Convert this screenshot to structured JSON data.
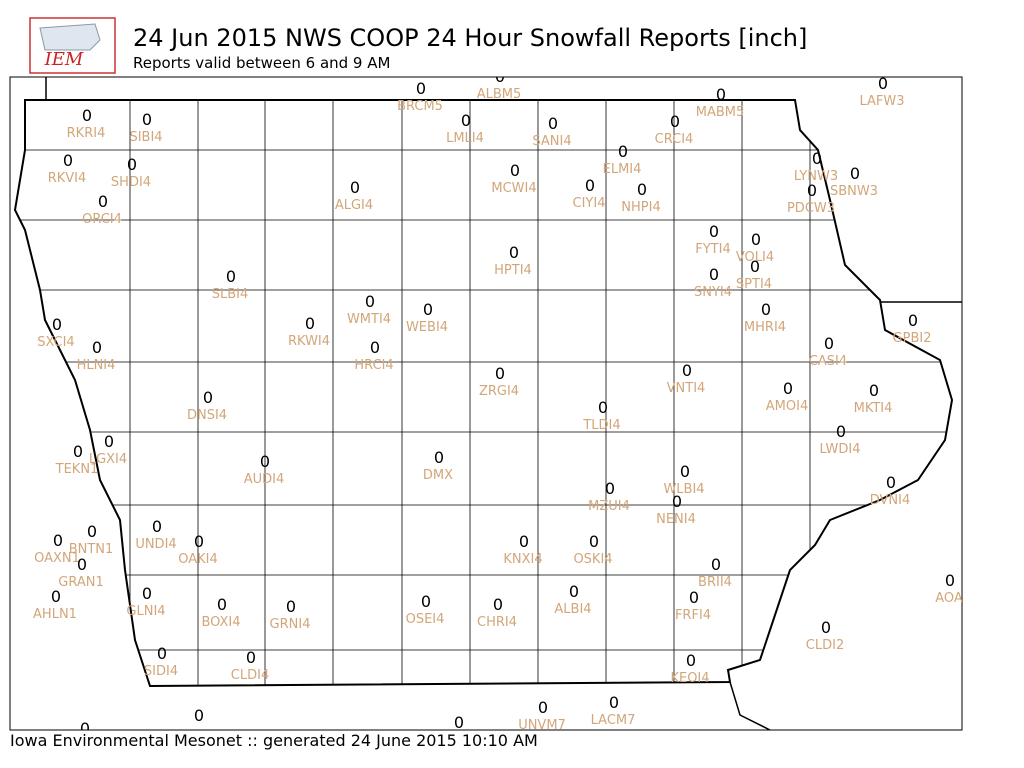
{
  "header": {
    "logo": "IEM",
    "title": "24 Jun 2015 NWS COOP 24 Hour Snowfall Reports [inch]",
    "subtitle": "Reports valid between 6 and 9 AM"
  },
  "footer": "Iowa Environmental Mesonet :: generated 24 June 2015 10:10 AM",
  "stations": [
    {
      "label": "RKRI4",
      "value": 0
    },
    {
      "label": "SIBI4",
      "value": 0
    },
    {
      "label": "RKVI4",
      "value": 0
    },
    {
      "label": "SHDI4",
      "value": 0
    },
    {
      "label": "ORCI4",
      "value": 0
    },
    {
      "label": "BRCM5",
      "value": 0
    },
    {
      "label": "ALBM5",
      "value": 0
    },
    {
      "label": "LMLI4",
      "value": 0
    },
    {
      "label": "SANI4",
      "value": 0
    },
    {
      "label": "CRCI4",
      "value": 0
    },
    {
      "label": "MABM5",
      "value": 0
    },
    {
      "label": "LAFW3",
      "value": 0
    },
    {
      "label": "ELMI4",
      "value": 0
    },
    {
      "label": "MCWI4",
      "value": 0
    },
    {
      "label": "CIYI4",
      "value": 0
    },
    {
      "label": "NHPI4",
      "value": 0
    },
    {
      "label": "ALGI4",
      "value": 0
    },
    {
      "label": "LYNW3",
      "value": 0
    },
    {
      "label": "SBNW3",
      "value": 0
    },
    {
      "label": "PDCW3",
      "value": 0
    },
    {
      "label": "FYTI4",
      "value": 0
    },
    {
      "label": "VOLI4",
      "value": 0
    },
    {
      "label": "HPTI4",
      "value": 0
    },
    {
      "label": "SLBI4",
      "value": 0
    },
    {
      "label": "SNYI4",
      "value": 0
    },
    {
      "label": "SPTI4",
      "value": 0
    },
    {
      "label": "WMTI4",
      "value": 0
    },
    {
      "label": "WEBI4",
      "value": 0
    },
    {
      "label": "RKWI4",
      "value": 0
    },
    {
      "label": "MHRI4",
      "value": 0
    },
    {
      "label": "GPBI2",
      "value": 0
    },
    {
      "label": "SXCI4",
      "value": 0
    },
    {
      "label": "HLNI4",
      "value": 0
    },
    {
      "label": "HRCI4",
      "value": 0
    },
    {
      "label": "CASI4",
      "value": 0
    },
    {
      "label": "VNTI4",
      "value": 0
    },
    {
      "label": "ZRGI4",
      "value": 0
    },
    {
      "label": "AMOI4",
      "value": 0
    },
    {
      "label": "MKTI4",
      "value": 0
    },
    {
      "label": "DNSI4",
      "value": 0
    },
    {
      "label": "TLDI4",
      "value": 0
    },
    {
      "label": "LWDI4",
      "value": 0
    },
    {
      "label": "LGXI4",
      "value": 0
    },
    {
      "label": "TEKN1",
      "value": 0
    },
    {
      "label": "DMX",
      "value": 0
    },
    {
      "label": "AUDI4",
      "value": 0
    },
    {
      "label": "WLBI4",
      "value": 0
    },
    {
      "label": "DVNI4",
      "value": 0
    },
    {
      "label": "MZUI4",
      "value": 0
    },
    {
      "label": "NENI4",
      "value": 0
    },
    {
      "label": "UNDI4",
      "value": 0
    },
    {
      "label": "BNTN1",
      "value": 0
    },
    {
      "label": "OAKI4",
      "value": 0
    },
    {
      "label": "KNXI4",
      "value": 0
    },
    {
      "label": "OSKI4",
      "value": 0
    },
    {
      "label": "OAXN1",
      "value": 0
    },
    {
      "label": "GRAN1",
      "value": 0
    },
    {
      "label": "BRII4",
      "value": 0
    },
    {
      "label": "AOA",
      "value": 0
    },
    {
      "label": "AHLN1",
      "value": 0
    },
    {
      "label": "GLNI4",
      "value": 0
    },
    {
      "label": "ALBI4",
      "value": 0
    },
    {
      "label": "FRFI4",
      "value": 0
    },
    {
      "label": "BOXI4",
      "value": 0
    },
    {
      "label": "GRNI4",
      "value": 0
    },
    {
      "label": "OSEI4",
      "value": 0
    },
    {
      "label": "CHRI4",
      "value": 0
    },
    {
      "label": "CLDI2",
      "value": 0
    },
    {
      "label": "SIDI4",
      "value": 0
    },
    {
      "label": "CLDI4",
      "value": 0
    },
    {
      "label": "KEOI4",
      "value": 0
    },
    {
      "label": "UNVM7",
      "value": 0
    },
    {
      "label": "LACM7",
      "value": 0
    },
    {
      "label": null,
      "value": 0
    },
    {
      "label": null,
      "value": 0
    },
    {
      "label": null,
      "value": 0
    }
  ]
}
